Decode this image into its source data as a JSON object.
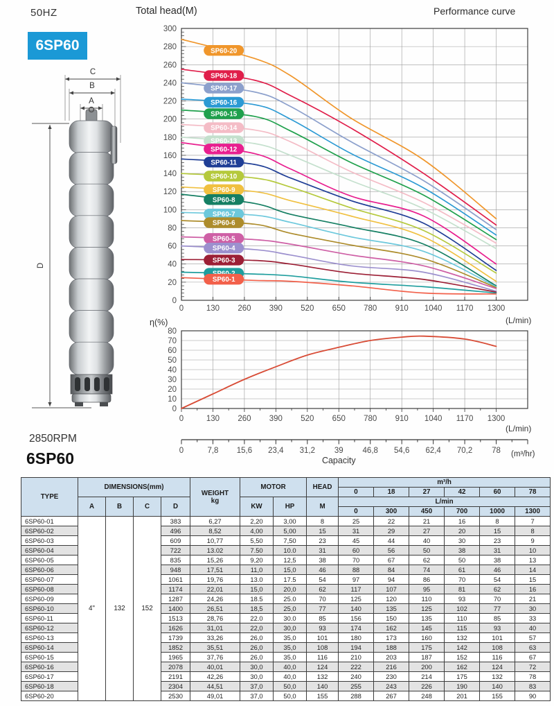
{
  "page": {
    "frequency": "50HZ",
    "model": "6SP60",
    "series_title": "6SP60",
    "rpm": "2850RPM",
    "head_axis_title": "Total head(M)",
    "page_title": "Performance curve"
  },
  "colors": {
    "badge_blue": "#1b99d6",
    "grid": "#9a9a9a",
    "axis": "#3c3c3c",
    "table_header_bg": "#cfe0ee",
    "table_alt_row_bg": "#e3e3e3"
  },
  "pump": {
    "width_dim_labels": [
      "C",
      "B",
      "A"
    ],
    "height_dim_label": "D"
  },
  "chart_data": {
    "head_chart": {
      "type": "line",
      "title": "Total head(M)",
      "xlabel_unit": "(L/min)",
      "xlim": [
        0,
        1430
      ],
      "x_ticks": [
        0,
        130,
        260,
        390,
        520,
        650,
        780,
        910,
        1040,
        1170,
        1300
      ],
      "ylim": [
        0,
        300
      ],
      "y_tick_step": 20,
      "grid": true,
      "x": [
        0,
        300,
        450,
        700,
        1000,
        1300
      ],
      "series": [
        {
          "name": "SP60-20",
          "color": "#F0962B",
          "values": [
            288,
            267,
            248,
            201,
            155,
            90
          ]
        },
        {
          "name": "SP60-18",
          "color": "#E01E4A",
          "values": [
            255,
            243,
            226,
            190,
            140,
            83
          ]
        },
        {
          "name": "SP60-17",
          "color": "#8CA0CC",
          "values": [
            240,
            230,
            214,
            175,
            132,
            78
          ]
        },
        {
          "name": "SP60-16",
          "color": "#2C9AD4",
          "values": [
            222,
            216,
            200,
            162,
            124,
            72
          ]
        },
        {
          "name": "SP60-15",
          "color": "#1FA04C",
          "values": [
            210,
            203,
            187,
            152,
            116,
            67
          ]
        },
        {
          "name": "SP60-14",
          "color": "#F4BCC6",
          "values": [
            194,
            188,
            175,
            142,
            108,
            63
          ]
        },
        {
          "name": "SP60-13",
          "color": "#C4E0CD",
          "values": [
            180,
            173,
            160,
            132,
            101,
            57
          ]
        },
        {
          "name": "SP60-12",
          "color": "#E81F8F",
          "values": [
            174,
            162,
            145,
            115,
            93,
            40
          ]
        },
        {
          "name": "SP60-11",
          "color": "#1F3E96",
          "values": [
            156,
            150,
            135,
            110,
            85,
            33
          ]
        },
        {
          "name": "SP60-10",
          "color": "#B5C93C",
          "values": [
            140,
            135,
            125,
            102,
            77,
            30
          ]
        },
        {
          "name": "SP60-9",
          "color": "#F0C040",
          "values": [
            125,
            120,
            110,
            93,
            70,
            21
          ]
        },
        {
          "name": "SP60-8",
          "color": "#157F63",
          "values": [
            117,
            107,
            95,
            81,
            62,
            16
          ]
        },
        {
          "name": "SP60-7",
          "color": "#6CC8DC",
          "values": [
            97,
            94,
            86,
            70,
            54,
            15
          ]
        },
        {
          "name": "SP60-6",
          "color": "#AD8C2B",
          "values": [
            88,
            84,
            74,
            61,
            46,
            14
          ]
        },
        {
          "name": "SP60-5",
          "color": "#CE5FA5",
          "values": [
            70,
            67,
            62,
            50,
            38,
            13
          ]
        },
        {
          "name": "SP60-4",
          "color": "#9C90CE",
          "values": [
            60,
            56,
            50,
            38,
            31,
            10
          ]
        },
        {
          "name": "SP60-3",
          "color": "#9C1F35",
          "values": [
            45,
            44,
            40,
            30,
            23,
            9
          ]
        },
        {
          "name": "SP60-2",
          "color": "#1F9E9E",
          "values": [
            31,
            29,
            27,
            20,
            15,
            8
          ]
        },
        {
          "name": "SP60-1",
          "color": "#F2604A",
          "values": [
            25,
            22,
            21,
            16,
            8,
            7
          ]
        }
      ]
    },
    "efficiency_chart": {
      "type": "line",
      "ylabel": "η(%)",
      "xlabel_unit": "(L/min)",
      "xlim": [
        0,
        1430
      ],
      "x_ticks": [
        0,
        130,
        260,
        390,
        520,
        650,
        780,
        910,
        1040,
        1170,
        1300
      ],
      "ylim": [
        0,
        80
      ],
      "y_tick_step": 10,
      "grid": true,
      "color": "#d84b35",
      "points": [
        [
          0,
          0
        ],
        [
          130,
          15
        ],
        [
          260,
          30
        ],
        [
          390,
          43
        ],
        [
          520,
          55
        ],
        [
          650,
          63
        ],
        [
          780,
          70
        ],
        [
          910,
          73.5
        ],
        [
          1000,
          74.5
        ],
        [
          1170,
          71.5
        ],
        [
          1300,
          64
        ]
      ]
    },
    "capacity_axis": {
      "type": "axis",
      "label": "Capacity",
      "unit": "(m³/hr)",
      "tick_labels": [
        "0",
        "7,8",
        "15,6",
        "23,4",
        "31,2",
        "39",
        "46,8",
        "54,6",
        "62,4",
        "70,2",
        "78"
      ]
    }
  },
  "table": {
    "header": {
      "type": "TYPE",
      "dimensions": "DIMENSIONS(mm)",
      "dim_cols": [
        "A",
        "B",
        "C",
        "D"
      ],
      "weight": "WEIGHT",
      "weight_unit": "kg",
      "motor": "MOTOR",
      "motor_cols": [
        "KW",
        "HP"
      ],
      "head": "HEAD",
      "head_unit": "M",
      "m3h_label": "m³/h",
      "m3h_ticks": [
        "0",
        "18",
        "27",
        "42",
        "60",
        "78"
      ],
      "lmin_label": "L/min",
      "lmin_ticks": [
        "0",
        "300",
        "450",
        "700",
        "1000",
        "1300"
      ]
    },
    "shared_dimensions": {
      "A": "4\"",
      "B": "132",
      "C": "152"
    },
    "rows": [
      {
        "type": "6SP60-01",
        "d": "383",
        "weight": "6,27",
        "kw": "2,20",
        "hp": "3,00",
        "head": "8",
        "flows": [
          "25",
          "22",
          "21",
          "16",
          "8",
          "7"
        ]
      },
      {
        "type": "6SP60-02",
        "d": "496",
        "weight": "8,52",
        "kw": "4,00",
        "hp": "5,00",
        "head": "15",
        "flows": [
          "31",
          "29",
          "27",
          "20",
          "15",
          "8"
        ]
      },
      {
        "type": "6SP60-03",
        "d": "609",
        "weight": "10,77",
        "kw": "5,50",
        "hp": "7,50",
        "head": "23",
        "flows": [
          "45",
          "44",
          "40",
          "30",
          "23",
          "9"
        ]
      },
      {
        "type": "6SP60-04",
        "d": "722",
        "weight": "13.02",
        "kw": "7.50",
        "hp": "10.0",
        "head": "31",
        "flows": [
          "60",
          "56",
          "50",
          "38",
          "31",
          "10"
        ]
      },
      {
        "type": "6SP60-05",
        "d": "835",
        "weight": "15,26",
        "kw": "9,20",
        "hp": "12,5",
        "head": "38",
        "flows": [
          "70",
          "67",
          "62",
          "50",
          "38",
          "13"
        ]
      },
      {
        "type": "6SP60-06",
        "d": "948",
        "weight": "17,51",
        "kw": "11,0",
        "hp": "15,0",
        "head": "46",
        "flows": [
          "88",
          "84",
          "74",
          "61",
          "46",
          "14"
        ]
      },
      {
        "type": "6SP60-07",
        "d": "1061",
        "weight": "19,76",
        "kw": "13.0",
        "hp": "17.5",
        "head": "54",
        "flows": [
          "97",
          "94",
          "86",
          "70",
          "54",
          "15"
        ]
      },
      {
        "type": "6SP60-08",
        "d": "1174",
        "weight": "22,01",
        "kw": "15,0",
        "hp": "20,0",
        "head": "62",
        "flows": [
          "117",
          "107",
          "95",
          "81",
          "62",
          "16"
        ]
      },
      {
        "type": "6SP60-09",
        "d": "1287",
        "weight": "24,26",
        "kw": "18.5",
        "hp": "25.0",
        "head": "70",
        "flows": [
          "125",
          "120",
          "110",
          "93",
          "70",
          "21"
        ]
      },
      {
        "type": "6SP60-10",
        "d": "1400",
        "weight": "26,51",
        "kw": "18,5",
        "hp": "25,0",
        "head": "77",
        "flows": [
          "140",
          "135",
          "125",
          "102",
          "77",
          "30"
        ]
      },
      {
        "type": "6SP60-11",
        "d": "1513",
        "weight": "28,76",
        "kw": "22.0",
        "hp": "30.0",
        "head": "85",
        "flows": [
          "156",
          "150",
          "135",
          "110",
          "85",
          "33"
        ]
      },
      {
        "type": "6SP60-12",
        "d": "1626",
        "weight": "31,01",
        "kw": "22,0",
        "hp": "30,0",
        "head": "93",
        "flows": [
          "174",
          "162",
          "145",
          "115",
          "93",
          "40"
        ]
      },
      {
        "type": "6SP60-13",
        "d": "1739",
        "weight": "33,26",
        "kw": "26,0",
        "hp": "35,0",
        "head": "101",
        "flows": [
          "180",
          "173",
          "160",
          "132",
          "101",
          "57"
        ]
      },
      {
        "type": "6SP60-14",
        "d": "1852",
        "weight": "35,51",
        "kw": "26,0",
        "hp": "35,0",
        "head": "108",
        "flows": [
          "194",
          "188",
          "175",
          "142",
          "108",
          "63"
        ]
      },
      {
        "type": "6SP60-15",
        "d": "1965",
        "weight": "37,76",
        "kw": "26,0",
        "hp": "35,0",
        "head": "116",
        "flows": [
          "210",
          "203",
          "187",
          "152",
          "116",
          "67"
        ]
      },
      {
        "type": "6SP60-16",
        "d": "2078",
        "weight": "40,01",
        "kw": "30,0",
        "hp": "40,0",
        "head": "124",
        "flows": [
          "222",
          "216",
          "200",
          "162",
          "124",
          "72"
        ]
      },
      {
        "type": "6SP60-17",
        "d": "2191",
        "weight": "42,26",
        "kw": "30,0",
        "hp": "40,0",
        "head": "132",
        "flows": [
          "240",
          "230",
          "214",
          "175",
          "132",
          "78"
        ]
      },
      {
        "type": "6SP60-18",
        "d": "2304",
        "weight": "44,51",
        "kw": "37,0",
        "hp": "50,0",
        "head": "140",
        "flows": [
          "255",
          "243",
          "226",
          "190",
          "140",
          "83"
        ]
      },
      {
        "type": "6SP60-20",
        "d": "2530",
        "weight": "49,01",
        "kw": "37,0",
        "hp": "50,0",
        "head": "155",
        "flows": [
          "288",
          "267",
          "248",
          "201",
          "155",
          "90"
        ]
      }
    ]
  }
}
